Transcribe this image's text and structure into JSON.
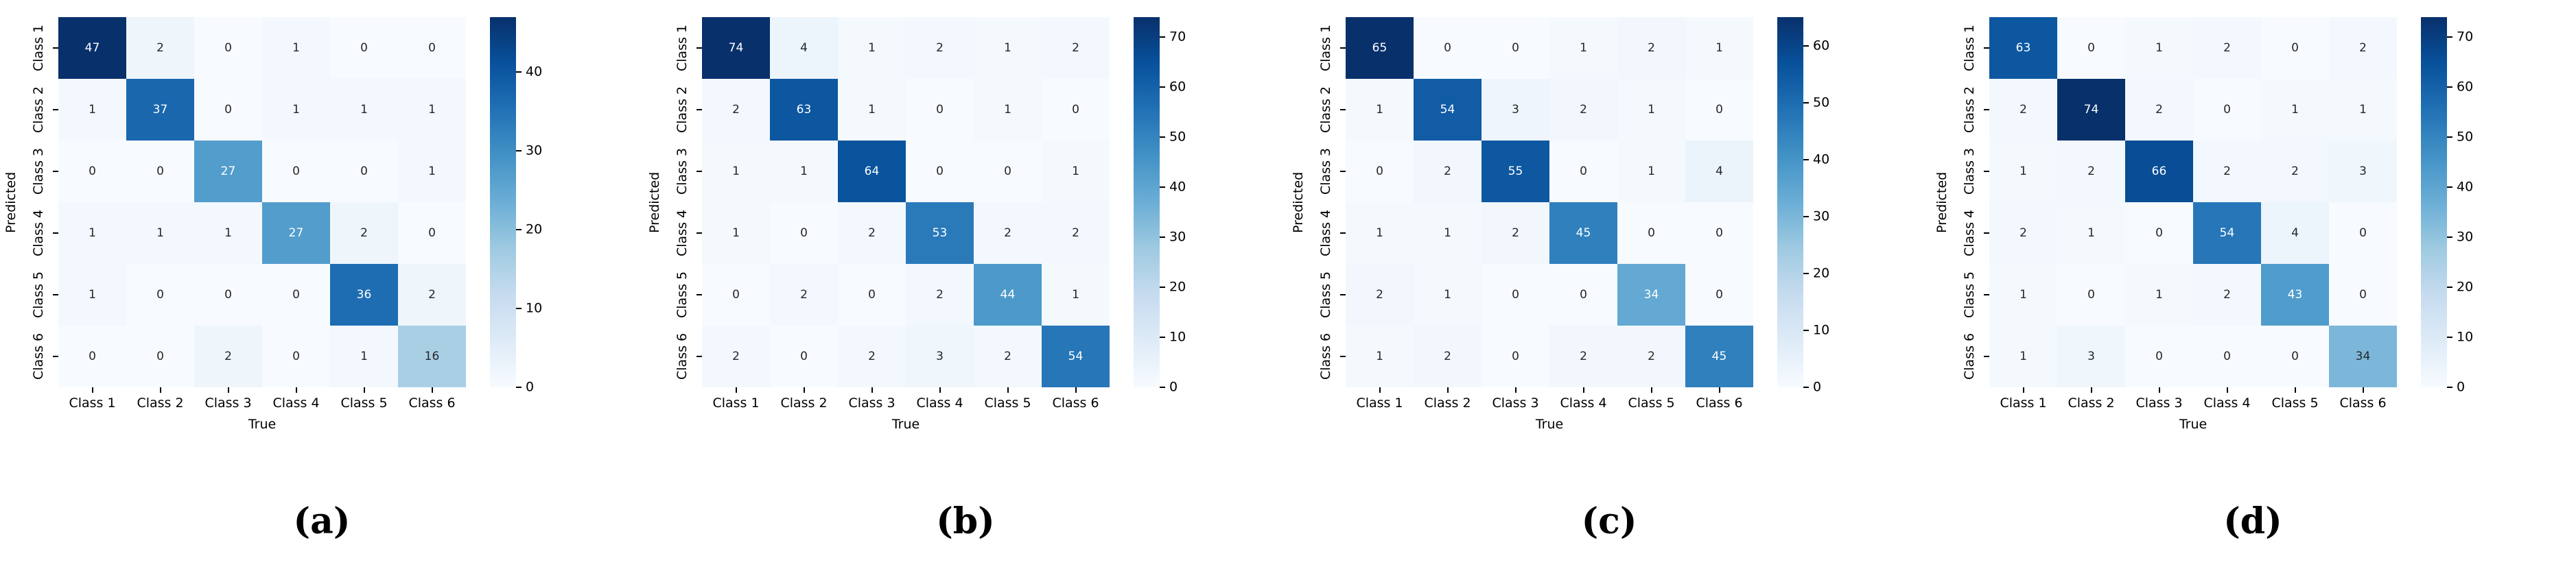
{
  "style": {
    "background": "#ffffff",
    "colormap_name": "Blues",
    "blues_anchors": [
      "#f7fbff",
      "#deebf7",
      "#c6dbef",
      "#9ecae1",
      "#6baed6",
      "#4292c6",
      "#2171b5",
      "#08519c",
      "#08306b"
    ],
    "annot_dark": "#262626",
    "annot_light": "#ffffff",
    "axis_text": "#000000"
  },
  "chart_data": [
    {
      "type": "heatmap",
      "panel_label": "(a)",
      "xlabel": "True",
      "ylabel": "Predicted",
      "x_tick_labels": [
        "Class 1",
        "Class 2",
        "Class 3",
        "Class 4",
        "Class 5",
        "Class 6"
      ],
      "y_tick_labels": [
        "Class 1",
        "Class 2",
        "Class 3",
        "Class 4",
        "Class 5",
        "Class 6"
      ],
      "matrix": [
        [
          47,
          2,
          0,
          1,
          0,
          0
        ],
        [
          1,
          37,
          0,
          1,
          1,
          1
        ],
        [
          0,
          0,
          27,
          0,
          0,
          1
        ],
        [
          1,
          1,
          1,
          27,
          2,
          0
        ],
        [
          1,
          0,
          0,
          0,
          36,
          2
        ],
        [
          0,
          0,
          2,
          0,
          1,
          16
        ]
      ],
      "vmin": 0,
      "vmax": 47,
      "colorbar_ticks": [
        0,
        10,
        20,
        30,
        40
      ],
      "legend_position": "right",
      "grid": false
    },
    {
      "type": "heatmap",
      "panel_label": "(b)",
      "xlabel": "True",
      "ylabel": "Predicted",
      "x_tick_labels": [
        "Class 1",
        "Class 2",
        "Class 3",
        "Class 4",
        "Class 5",
        "Class 6"
      ],
      "y_tick_labels": [
        "Class 1",
        "Class 2",
        "Class 3",
        "Class 4",
        "Class 5",
        "Class 6"
      ],
      "matrix": [
        [
          74,
          4,
          1,
          2,
          1,
          2
        ],
        [
          2,
          63,
          1,
          0,
          1,
          0
        ],
        [
          1,
          1,
          64,
          0,
          0,
          1
        ],
        [
          1,
          0,
          2,
          53,
          2,
          2
        ],
        [
          0,
          2,
          0,
          2,
          44,
          1
        ],
        [
          2,
          0,
          2,
          3,
          2,
          54
        ]
      ],
      "vmin": 0,
      "vmax": 74,
      "colorbar_ticks": [
        0,
        10,
        20,
        30,
        40,
        50,
        60,
        70
      ],
      "legend_position": "right",
      "grid": false
    },
    {
      "type": "heatmap",
      "panel_label": "(c)",
      "xlabel": "True",
      "ylabel": "Predicted",
      "x_tick_labels": [
        "Class 1",
        "Class 2",
        "Class 3",
        "Class 4",
        "Class 5",
        "Class 6"
      ],
      "y_tick_labels": [
        "Class 1",
        "Class 2",
        "Class 3",
        "Class 4",
        "Class 5",
        "Class 6"
      ],
      "matrix": [
        [
          65,
          0,
          0,
          1,
          2,
          1
        ],
        [
          1,
          54,
          3,
          2,
          1,
          0
        ],
        [
          0,
          2,
          55,
          0,
          1,
          4
        ],
        [
          1,
          1,
          2,
          45,
          0,
          0
        ],
        [
          2,
          1,
          0,
          0,
          34,
          0
        ],
        [
          1,
          2,
          0,
          2,
          2,
          45
        ]
      ],
      "vmin": 0,
      "vmax": 65,
      "colorbar_ticks": [
        0,
        10,
        20,
        30,
        40,
        50,
        60
      ],
      "legend_position": "right",
      "grid": false
    },
    {
      "type": "heatmap",
      "panel_label": "(d)",
      "xlabel": "True",
      "ylabel": "Predicted",
      "x_tick_labels": [
        "Class 1",
        "Class 2",
        "Class 3",
        "Class 4",
        "Class 5",
        "Class 6"
      ],
      "y_tick_labels": [
        "Class 1",
        "Class 2",
        "Class 3",
        "Class 4",
        "Class 5",
        "Class 6"
      ],
      "matrix": [
        [
          63,
          0,
          1,
          2,
          0,
          2
        ],
        [
          2,
          74,
          2,
          0,
          1,
          1
        ],
        [
          1,
          2,
          66,
          2,
          2,
          3
        ],
        [
          2,
          1,
          0,
          54,
          4,
          0
        ],
        [
          1,
          0,
          1,
          2,
          43,
          0
        ],
        [
          1,
          3,
          0,
          0,
          0,
          34
        ]
      ],
      "vmin": 0,
      "vmax": 74,
      "colorbar_ticks": [
        0,
        10,
        20,
        30,
        40,
        50,
        60,
        70
      ],
      "legend_position": "right",
      "grid": false
    }
  ]
}
